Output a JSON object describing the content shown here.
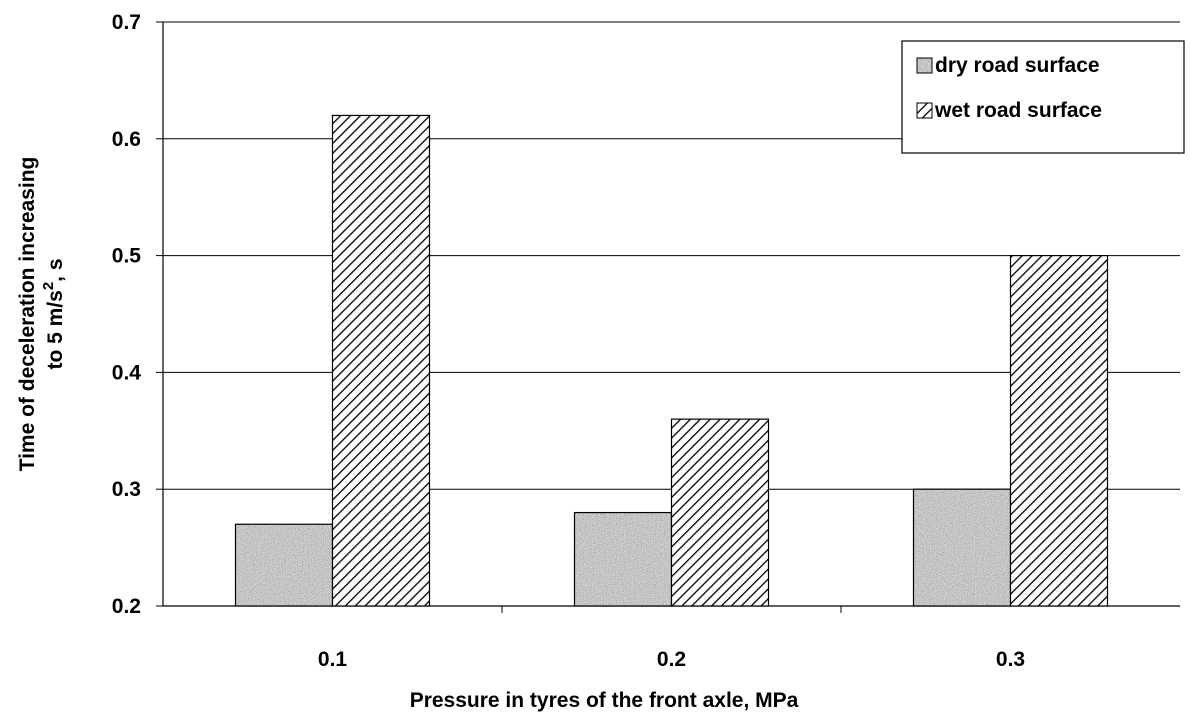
{
  "chart_data": {
    "type": "bar",
    "categories": [
      "0.1",
      "0.2",
      "0.3"
    ],
    "series": [
      {
        "name": "dry road surface",
        "values": [
          0.27,
          0.28,
          0.3
        ],
        "pattern": "speckle"
      },
      {
        "name": "wet road surface",
        "values": [
          0.62,
          0.36,
          0.5
        ],
        "pattern": "hatch"
      }
    ],
    "xlabel": "Pressure in tyres of the front axle, MPa",
    "ylabel_line1": "Time of deceleration increasing",
    "ylabel_line2_prefix": "to 5 m/s",
    "ylabel_superscript": "2",
    "ylabel_line2_suffix": ", s",
    "ylim": [
      0.2,
      0.7
    ],
    "yticks": [
      "0.2",
      "0.3",
      "0.4",
      "0.5",
      "0.6",
      "0.7"
    ],
    "grid": true,
    "legend_position": "top-right",
    "colors": {
      "bar_border": "#000000",
      "grid": "#000000",
      "dry_fill": "#9a9a9a",
      "hatch": "#000000"
    }
  }
}
